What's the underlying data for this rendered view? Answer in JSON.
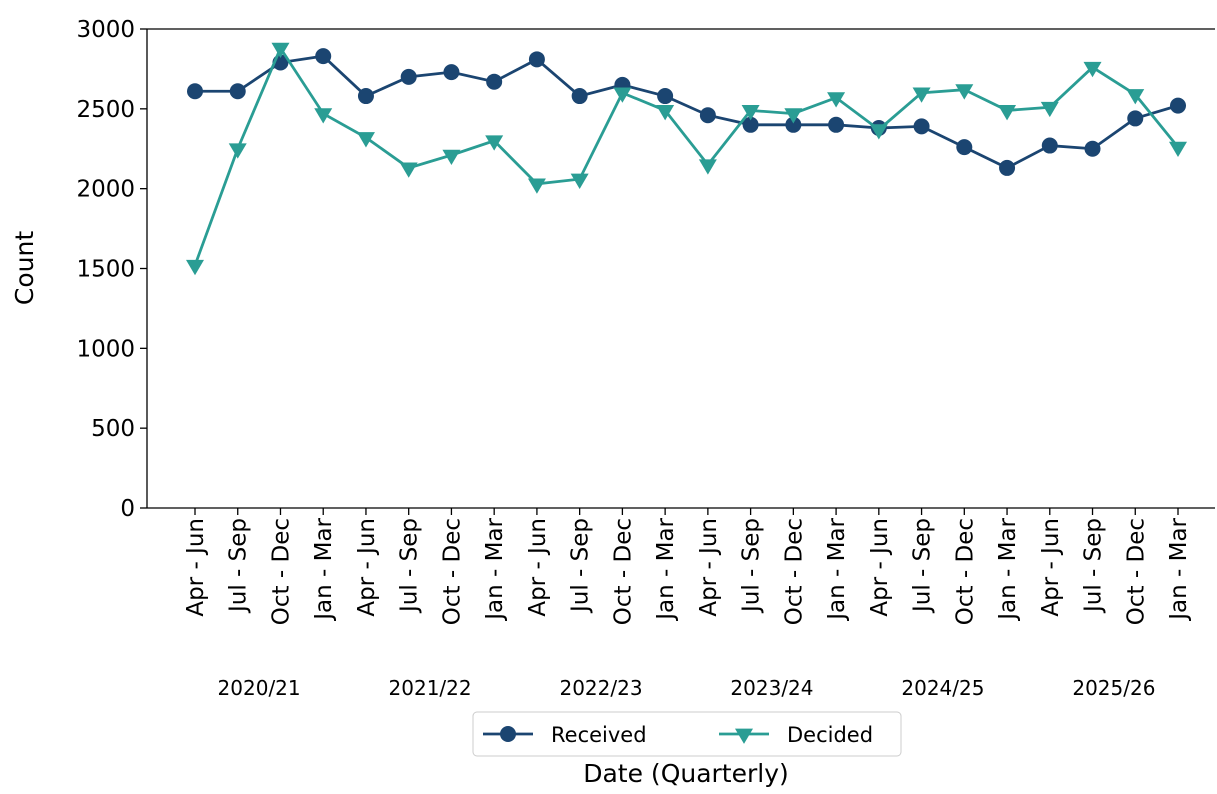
{
  "chart_data": {
    "type": "line",
    "categories": [
      "Apr - Jun",
      "Jul - Sep",
      "Oct - Dec",
      "Jan - Mar",
      "Apr - Jun",
      "Jul - Sep",
      "Oct - Dec",
      "Jan - Mar",
      "Apr - Jun",
      "Jul - Sep",
      "Oct - Dec",
      "Jan - Mar",
      "Apr - Jun",
      "Jul - Sep",
      "Oct - Dec",
      "Jan - Mar",
      "Apr - Jun",
      "Jul - Sep",
      "Oct - Dec",
      "Jan - Mar",
      "Apr - Jun",
      "Jul - Sep",
      "Oct - Dec",
      "Jan - Mar"
    ],
    "groups": [
      "2020/21",
      "2021/22",
      "2022/23",
      "2023/24",
      "2024/25",
      "2025/26"
    ],
    "series": [
      {
        "name": "Received",
        "color": "#1b4571",
        "marker": "circle",
        "values": [
          2610,
          2610,
          2790,
          2830,
          2580,
          2700,
          2730,
          2670,
          2810,
          2580,
          2650,
          2580,
          2460,
          2400,
          2400,
          2400,
          2380,
          2390,
          2260,
          2130,
          2270,
          2250,
          2440,
          2520
        ]
      },
      {
        "name": "Decided",
        "color": "#2a9d94",
        "marker": "triangle-down",
        "values": [
          1520,
          2250,
          2880,
          2470,
          2320,
          2130,
          2210,
          2300,
          2030,
          2060,
          2600,
          2490,
          2150,
          2490,
          2470,
          2570,
          2370,
          2600,
          2620,
          2490,
          2510,
          2760,
          2590,
          2260
        ]
      }
    ],
    "xlabel": "Date (Quarterly)",
    "ylabel": "Count",
    "ylim": [
      0,
      3000
    ],
    "yticks": [
      0,
      500,
      1000,
      1500,
      2000,
      2500,
      3000
    ],
    "legend": "lower center"
  }
}
